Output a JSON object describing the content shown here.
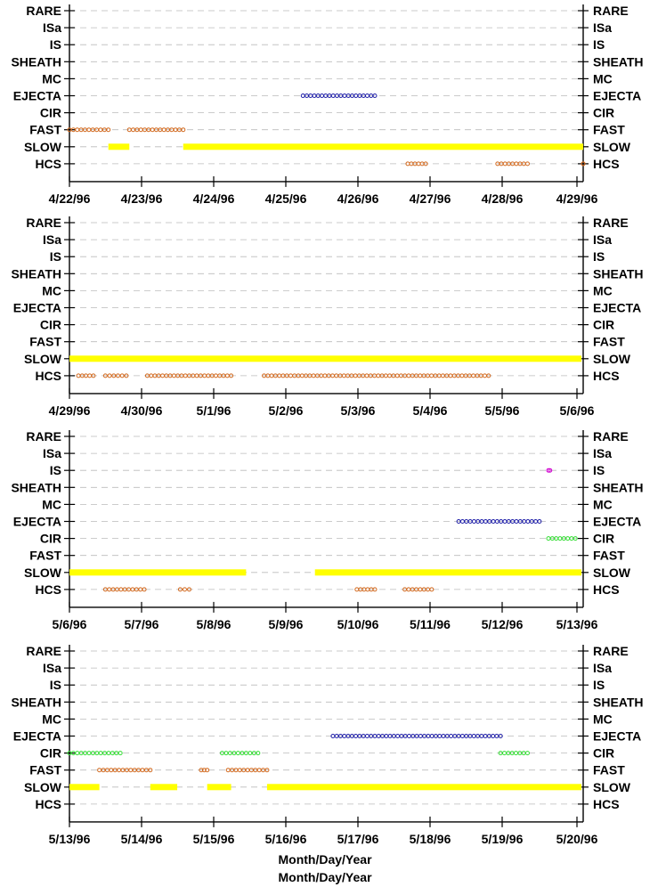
{
  "chart_data": [
    {
      "type": "scatter",
      "categories": [
        "RARE",
        "ISa",
        "IS",
        "SHEATH",
        "MC",
        "EJECTA",
        "CIR",
        "FAST",
        "SLOW",
        "HCS"
      ],
      "x_ticks": [
        "4/22/96",
        "4/23/96",
        "4/24/96",
        "4/25/96",
        "4/26/96",
        "4/27/96",
        "4/28/96",
        "4/29/96"
      ],
      "xlim": [
        "4/22/96",
        "4/29/96"
      ],
      "colors": {
        "EJECTA": "#1f1fa8",
        "FAST": "#d2691e",
        "SLOW": "#ffff00",
        "HCS": "#d2691e"
      },
      "series": [
        {
          "category": "EJECTA",
          "segments": [
            [
              "4/25/96 06:00",
              "4/26/96 06:00"
            ]
          ]
        },
        {
          "category": "FAST",
          "segments": [
            [
              "4/22/96 00:00",
              "4/22/96 13:00"
            ],
            [
              "4/22/96 20:00",
              "4/23/96 14:00"
            ]
          ]
        },
        {
          "category": "SLOW",
          "segments": [
            [
              "4/22/96 13:00",
              "4/22/96 20:00"
            ],
            [
              "4/23/96 14:00",
              "4/29/96 05:00"
            ]
          ]
        },
        {
          "category": "HCS",
          "segments": [
            [
              "4/26/96 17:00",
              "4/26/96 23:00"
            ],
            [
              "4/27/96 23:00",
              "4/28/96 09:00"
            ],
            [
              "4/29/96 04:00",
              "4/29/96 05:00"
            ]
          ]
        }
      ]
    },
    {
      "type": "scatter",
      "categories": [
        "RARE",
        "ISa",
        "IS",
        "SHEATH",
        "MC",
        "EJECTA",
        "CIR",
        "FAST",
        "SLOW",
        "HCS"
      ],
      "x_ticks": [
        "4/29/96",
        "4/30/96",
        "5/1/96",
        "5/2/96",
        "5/3/96",
        "5/4/96",
        "5/5/96",
        "5/6/96"
      ],
      "xlim": [
        "4/29/96",
        "5/6/96"
      ],
      "colors": {
        "SLOW": "#ffff00",
        "HCS": "#d2691e"
      },
      "series": [
        {
          "category": "SLOW",
          "segments": [
            [
              "4/29/96 00:00",
              "5/6/96 03:00"
            ]
          ]
        },
        {
          "category": "HCS",
          "segments": [
            [
              "4/29/96 03:00",
              "4/29/96 08:00"
            ],
            [
              "4/29/96 12:00",
              "4/29/96 19:00"
            ],
            [
              "4/30/96 02:00",
              "5/1/96 06:00"
            ],
            [
              "5/1/96 17:00",
              "5/4/96 20:00"
            ]
          ]
        }
      ]
    },
    {
      "type": "scatter",
      "categories": [
        "RARE",
        "ISa",
        "IS",
        "SHEATH",
        "MC",
        "EJECTA",
        "CIR",
        "FAST",
        "SLOW",
        "HCS"
      ],
      "x_ticks": [
        "5/6/96",
        "5/7/96",
        "5/8/96",
        "5/9/96",
        "5/10/96",
        "5/11/96",
        "5/12/96",
        "5/13/96"
      ],
      "xlim": [
        "5/6/96",
        "5/13/96"
      ],
      "colors": {
        "IS": "#d000d0",
        "EJECTA": "#1f1fa8",
        "CIR": "#33dd33",
        "SLOW": "#ffff00",
        "HCS": "#d2691e"
      },
      "series": [
        {
          "category": "IS",
          "segments": [
            [
              "5/12/96 16:00",
              "5/12/96 16:30"
            ]
          ]
        },
        {
          "category": "EJECTA",
          "segments": [
            [
              "5/11/96 10:00",
              "5/12/96 13:00"
            ]
          ]
        },
        {
          "category": "CIR",
          "segments": [
            [
              "5/12/96 16:00",
              "5/13/96 01:00"
            ]
          ]
        },
        {
          "category": "SLOW",
          "segments": [
            [
              "5/6/96 00:00",
              "5/8/96 11:00"
            ],
            [
              "5/9/96 10:00",
              "5/13/96 03:00"
            ]
          ]
        },
        {
          "category": "HCS",
          "segments": [
            [
              "5/6/96 12:00",
              "5/7/96 01:00"
            ],
            [
              "5/7/96 13:00",
              "5/7/96 16:00"
            ],
            [
              "5/10/96 00:00",
              "5/10/96 06:00"
            ],
            [
              "5/10/96 16:00",
              "5/11/96 01:00"
            ]
          ]
        }
      ]
    },
    {
      "type": "scatter",
      "categories": [
        "RARE",
        "ISa",
        "IS",
        "SHEATH",
        "MC",
        "EJECTA",
        "CIR",
        "FAST",
        "SLOW",
        "HCS"
      ],
      "x_ticks": [
        "5/13/96",
        "5/14/96",
        "5/15/96",
        "5/16/96",
        "5/17/96",
        "5/18/96",
        "5/19/96",
        "5/20/96"
      ],
      "xlim": [
        "5/13/96",
        "5/20/96"
      ],
      "colors": {
        "EJECTA": "#1f1fa8",
        "CIR": "#33dd33",
        "FAST": "#d2691e",
        "SLOW": "#ffff00"
      },
      "series": [
        {
          "category": "EJECTA",
          "segments": [
            [
              "5/16/96 16:00",
              "5/19/96 00:00"
            ]
          ]
        },
        {
          "category": "CIR",
          "segments": [
            [
              "5/13/96 00:00",
              "5/13/96 17:00"
            ],
            [
              "5/15/96 03:00",
              "5/15/96 15:00"
            ],
            [
              "5/19/96 00:00",
              "5/19/96 09:00"
            ]
          ]
        },
        {
          "category": "FAST",
          "segments": [
            [
              "5/13/96 10:00",
              "5/14/96 03:00"
            ],
            [
              "5/14/96 20:00",
              "5/14/96 22:00"
            ],
            [
              "5/15/96 05:00",
              "5/15/96 18:00"
            ]
          ]
        },
        {
          "category": "SLOW",
          "segments": [
            [
              "5/13/96 00:00",
              "5/13/96 10:00"
            ],
            [
              "5/14/96 03:00",
              "5/14/96 12:00"
            ],
            [
              "5/14/96 22:00",
              "5/15/96 06:00"
            ],
            [
              "5/15/96 18:00",
              "5/20/96 03:00"
            ]
          ]
        }
      ]
    }
  ],
  "xlabel_1": "Month/Day/Year",
  "xlabel_2": "Month/Day/Year"
}
